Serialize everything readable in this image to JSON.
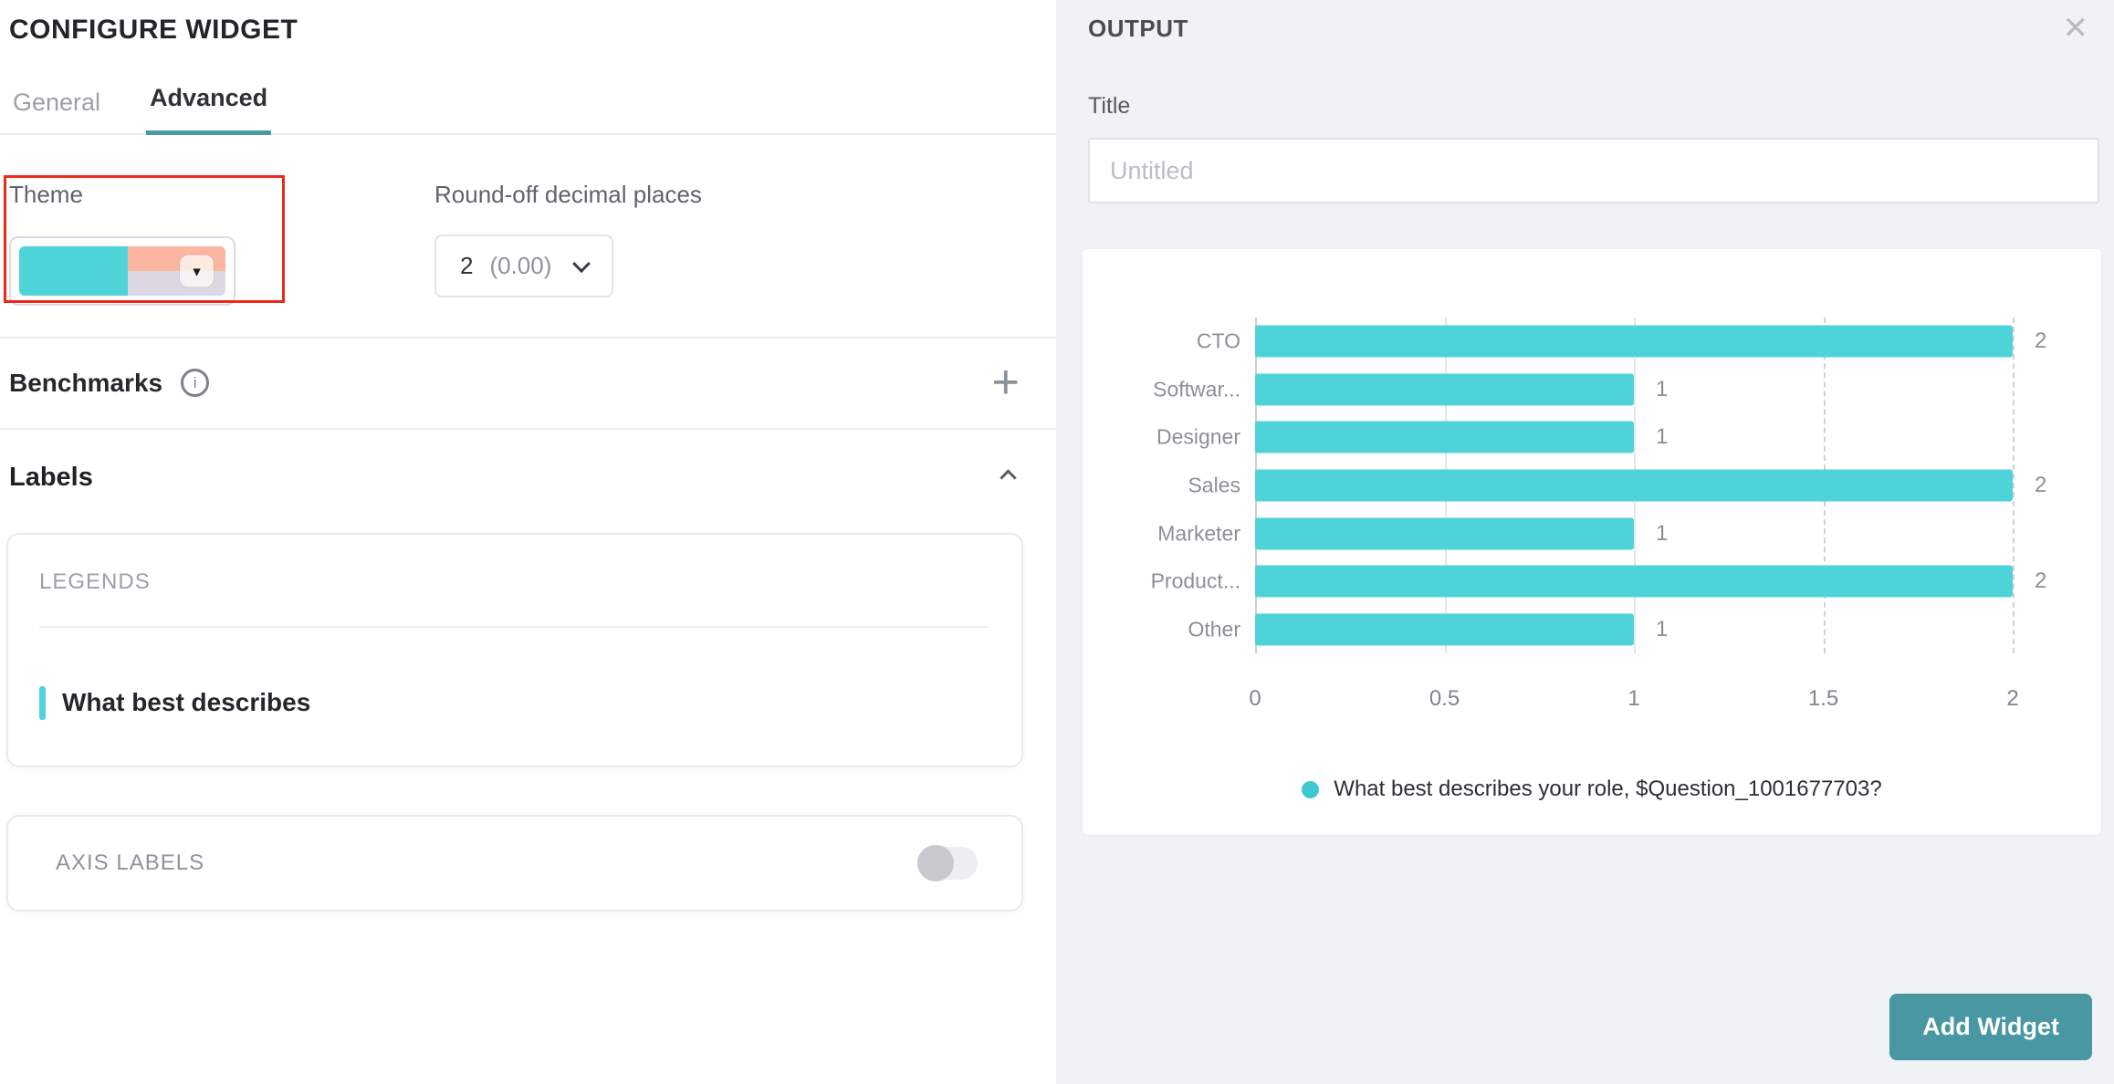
{
  "left_panel": {
    "title": "CONFIGURE WIDGET",
    "tabs": [
      {
        "label": "General",
        "active": false
      },
      {
        "label": "Advanced",
        "active": true
      }
    ],
    "theme": {
      "label": "Theme"
    },
    "round_off": {
      "label": "Round-off decimal places",
      "value": "2",
      "hint": "(0.00)"
    },
    "benchmarks": {
      "label": "Benchmarks"
    },
    "labels_section": {
      "title": "Labels",
      "legends_heading": "LEGENDS",
      "legend_item": "What best describes",
      "axis_labels_heading": "AXIS LABELS",
      "axis_labels_enabled": false
    }
  },
  "right_panel": {
    "header": "OUTPUT",
    "title_label": "Title",
    "title_placeholder": "Untitled",
    "add_widget_label": "Add Widget"
  },
  "colors": {
    "accent_teal": "#4ed3d8",
    "legend_dot_teal": "#3ec9d2",
    "button_teal": "#4897a2",
    "tab_underline_teal": "#459aa4",
    "theme_salmon": "#fbb5a1",
    "theme_lavender": "#dcd8e3",
    "annotation_red": "#ee2717"
  },
  "chart_data": {
    "type": "bar",
    "orientation": "horizontal",
    "categories": [
      "CTO",
      "Softwar...",
      "Designer",
      "Sales",
      "Marketer",
      "Product...",
      "Other"
    ],
    "values": [
      2,
      1,
      1,
      2,
      1,
      2,
      1
    ],
    "x_ticks": [
      0,
      0.5,
      1,
      1.5,
      2
    ],
    "xlim": [
      0,
      2
    ],
    "dashed_gridlines_from": 1.5,
    "grid": "vertical",
    "bar_color": "#4ed3d8",
    "legend": [
      {
        "label": "What best describes your role, $Question_1001677703?",
        "color": "#3ec9d2"
      }
    ],
    "legend_position": "bottom-center",
    "title": "",
    "xlabel": "",
    "ylabel": ""
  }
}
